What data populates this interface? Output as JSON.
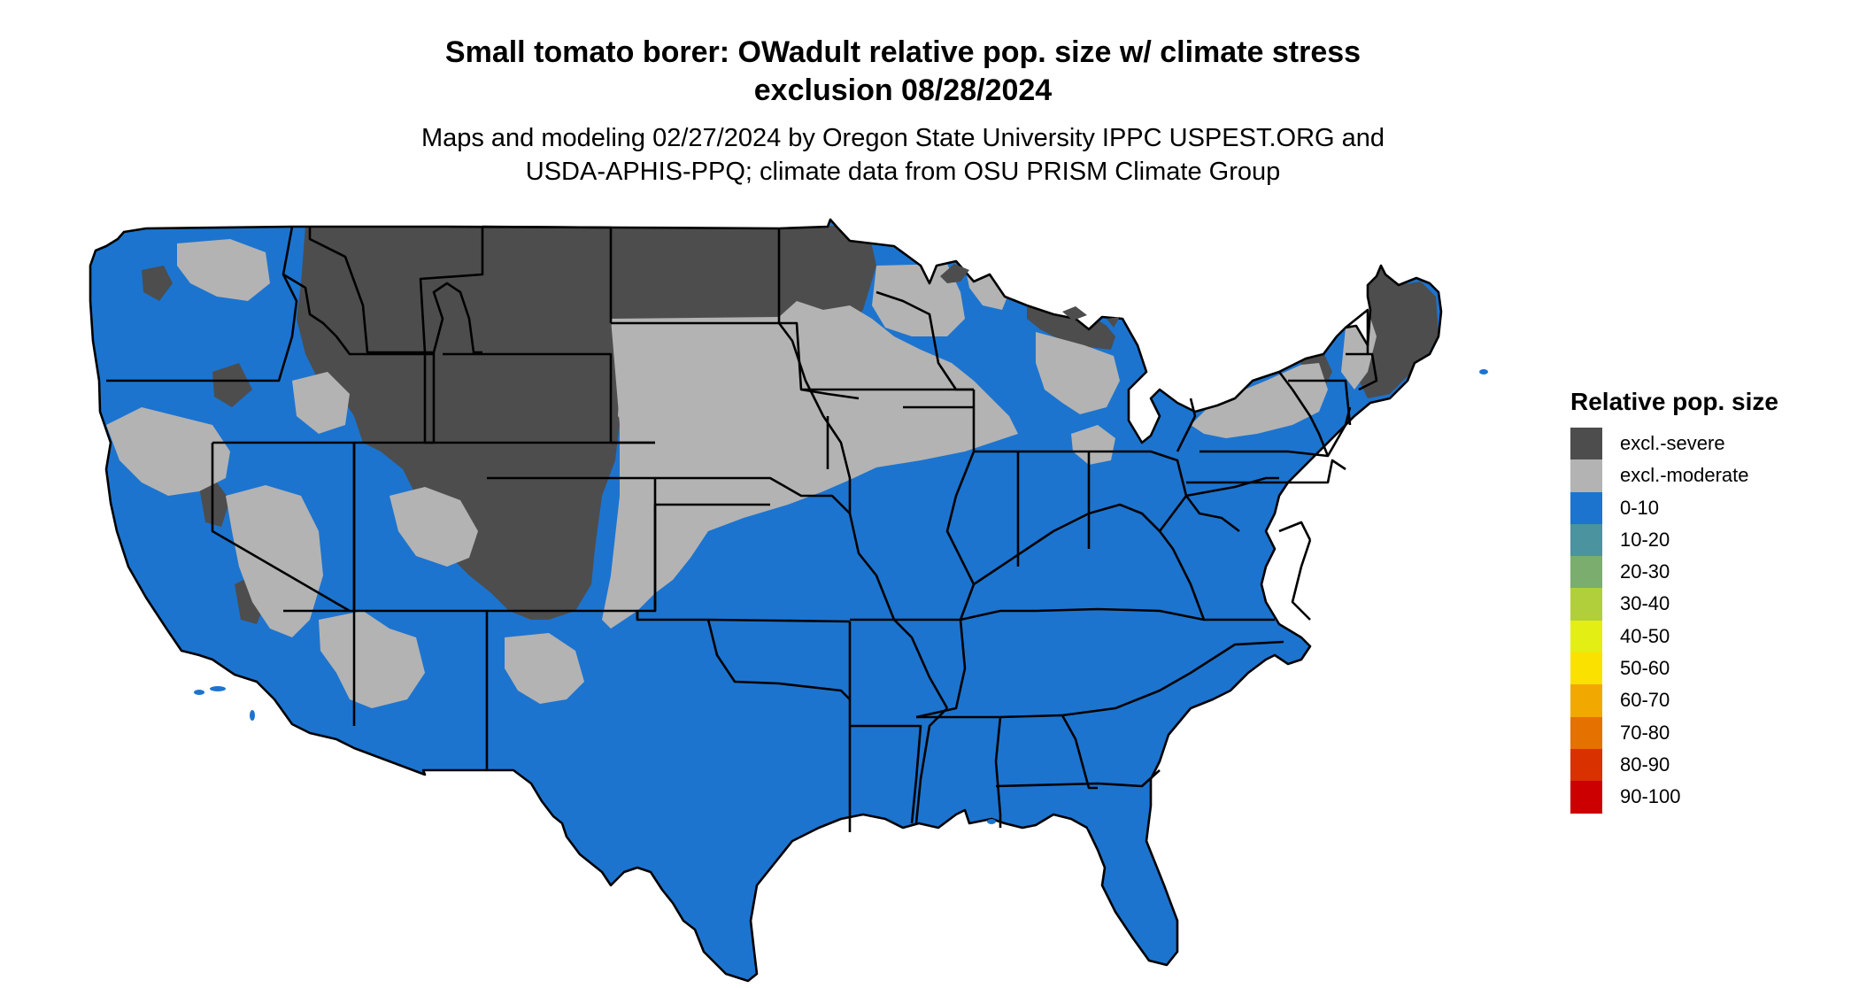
{
  "title": {
    "line1": "Small tomato borer: OWadult relative pop. size w/ climate stress",
    "line2": "exclusion 08/28/2024"
  },
  "subtitle": {
    "line1": "Maps and modeling 02/27/2024 by Oregon State University IPPC USPEST.ORG and",
    "line2": "USDA-APHIS-PPQ; climate data from OSU PRISM Climate Group"
  },
  "legend": {
    "title": "Relative pop. size",
    "items": [
      {
        "label": "excl.-severe",
        "color": "#4d4d4d"
      },
      {
        "label": "excl.-moderate",
        "color": "#b3b3b3"
      },
      {
        "label": "0-10",
        "color": "#1c74cf"
      },
      {
        "label": "10-20",
        "color": "#4b939e"
      },
      {
        "label": "20-30",
        "color": "#7aad6e"
      },
      {
        "label": "30-40",
        "color": "#b1cf3a"
      },
      {
        "label": "40-50",
        "color": "#e3ee15"
      },
      {
        "label": "50-60",
        "color": "#fae100"
      },
      {
        "label": "60-70",
        "color": "#f1a800"
      },
      {
        "label": "70-80",
        "color": "#e57100"
      },
      {
        "label": "80-90",
        "color": "#d93100"
      },
      {
        "label": "90-100",
        "color": "#cc0000"
      }
    ]
  },
  "map": {
    "region": "Contiguous United States",
    "colors": {
      "severe": "#4d4d4d",
      "moderate": "#b3b3b3",
      "low": "#1c74cf",
      "border": "#000000"
    }
  }
}
